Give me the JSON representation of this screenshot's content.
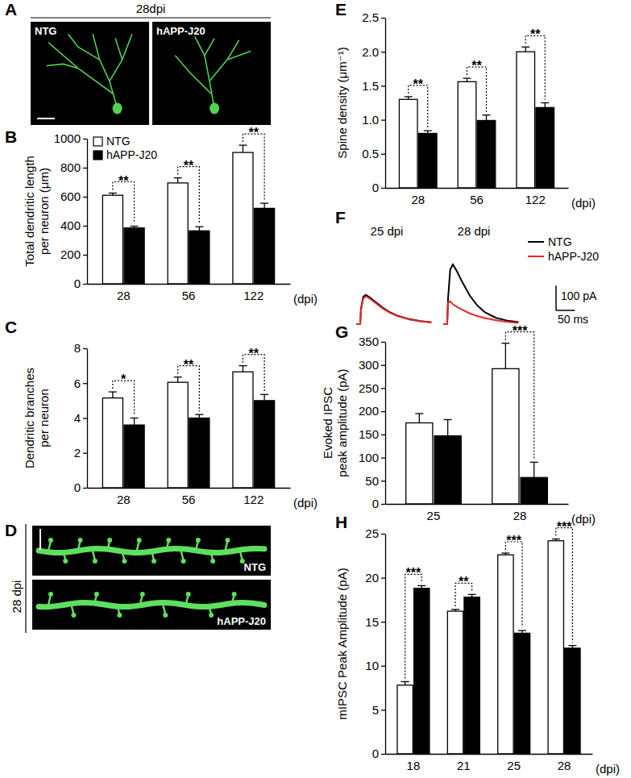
{
  "image_panels": [
    {
      "title": "A",
      "subtitle": "28dpi",
      "images": [
        {
          "label": "NTG"
        },
        {
          "label": "hAPP-J20"
        }
      ]
    },
    {
      "title": "D",
      "subtitle": "28 dpi",
      "images": [
        {
          "label": "NTG"
        },
        {
          "label": "hAPP-J20"
        }
      ]
    }
  ],
  "chart_data": [
    {
      "type": "bar",
      "title": "B",
      "categories": [
        "28",
        "56",
        "122"
      ],
      "xlabel": "(dpi)",
      "ylabel": [
        "Total dendritic length",
        "per neuron (μm)"
      ],
      "ylim": [
        0,
        1000
      ],
      "yticks": [
        0,
        200,
        400,
        600,
        800,
        1000
      ],
      "legend": "upper left",
      "series": [
        {
          "name": "NTG",
          "color": "#ffffff",
          "values": [
            610,
            695,
            905
          ],
          "errors": [
            15,
            35,
            50
          ]
        },
        {
          "name": "hAPP-J20",
          "color": "#000000",
          "values": [
            385,
            365,
            520
          ],
          "errors": [
            12,
            28,
            35
          ]
        }
      ],
      "significance": [
        "**",
        "**",
        "**"
      ]
    },
    {
      "type": "bar",
      "title": "C",
      "categories": [
        "28",
        "56",
        "122"
      ],
      "xlabel": "(dpi)",
      "ylabel": [
        "Dendritic branches",
        "per neuron"
      ],
      "ylim": [
        0,
        8
      ],
      "yticks": [
        0,
        2,
        4,
        6,
        8
      ],
      "series": [
        {
          "color": "#ffffff",
          "values": [
            5.15,
            6.05,
            6.65
          ],
          "errors": [
            0.35,
            0.3,
            0.35
          ]
        },
        {
          "color": "#000000",
          "values": [
            3.6,
            4.0,
            5.0
          ],
          "errors": [
            0.4,
            0.2,
            0.35
          ]
        }
      ],
      "significance": [
        "*",
        "**",
        "**"
      ]
    },
    {
      "type": "bar",
      "title": "E",
      "categories": [
        "28",
        "56",
        "122"
      ],
      "xlabel": "(dpi)",
      "ylabel": [
        "Spine density (μm⁻¹)"
      ],
      "ylim": [
        0,
        2.5
      ],
      "yticks": [
        0,
        0.5,
        {
          "value": 1,
          "label": "1.0"
        },
        1.5,
        {
          "value": 2,
          "label": "2.0"
        },
        2.5
      ],
      "series": [
        {
          "color": "#ffffff",
          "values": [
            1.3,
            1.56,
            2.0
          ],
          "errors": [
            0.04,
            0.05,
            0.07
          ]
        },
        {
          "color": "#000000",
          "values": [
            0.8,
            0.99,
            1.18
          ],
          "errors": [
            0.04,
            0.08,
            0.07
          ]
        }
      ],
      "significance": [
        "**",
        "**",
        "**"
      ]
    },
    {
      "type": "bar",
      "title": "G",
      "categories": [
        "25",
        "28"
      ],
      "xlabel": "(dpi)",
      "ylabel": [
        "Evoked IPSC",
        "peak amplitude (pA)"
      ],
      "ylim": [
        0,
        350
      ],
      "yticks": [
        0,
        50,
        100,
        150,
        200,
        250,
        300,
        350
      ],
      "series": [
        {
          "color": "#ffffff",
          "values": [
            175,
            292
          ],
          "errors": [
            20,
            55
          ]
        },
        {
          "color": "#000000",
          "values": [
            147,
            57
          ],
          "errors": [
            35,
            33
          ]
        }
      ],
      "significance": [
        null,
        "***"
      ]
    },
    {
      "type": "bar",
      "title": "H",
      "categories": [
        "18",
        "21",
        "25",
        "28"
      ],
      "xlabel": "(dpi)",
      "ylabel": [
        "mIPSC Peak Amplitude (pA)"
      ],
      "ylim": [
        0,
        25
      ],
      "yticks": [
        0,
        5,
        10,
        15,
        20,
        25
      ],
      "series": [
        {
          "color": "#ffffff",
          "values": [
            7.8,
            16.2,
            22.6,
            24.2
          ],
          "errors": [
            0.4,
            0.2,
            0.2,
            0.2
          ]
        },
        {
          "color": "#000000",
          "values": [
            18.8,
            17.8,
            13.7,
            12.0
          ],
          "errors": [
            0.3,
            0.3,
            0.3,
            0.3
          ]
        }
      ],
      "significance": [
        "***",
        "**",
        "***",
        "***"
      ]
    },
    {
      "type": "line",
      "title": "F",
      "tick_labels": false,
      "legend": "upper right",
      "xlim": [
        -15,
        200
      ],
      "ylim": [
        -10,
        260
      ],
      "x": [
        -10,
        0,
        2,
        8,
        15,
        25,
        40,
        60,
        80,
        100,
        130,
        160,
        190
      ],
      "panels": [
        {
          "subtitle": "25 dpi",
          "series": [
            {
              "name": "NTG",
              "color": "#000000",
              "values": [
                0,
                0,
                60,
                110,
                118,
                108,
                90,
                66,
                47,
                33,
                20,
                12,
                7
              ]
            },
            {
              "name": "hAPP-J20",
              "color": "#e8262a",
              "values": [
                0,
                0,
                55,
                102,
                112,
                103,
                86,
                63,
                45,
                32,
                19,
                11,
                6
              ]
            }
          ]
        },
        {
          "subtitle": "28 dpi",
          "series": [
            {
              "color": "#000000",
              "values": [
                0,
                0,
                100,
                220,
                240,
                215,
                170,
                115,
                75,
                48,
                25,
                14,
                8
              ]
            },
            {
              "color": "#e8262a",
              "values": [
                0,
                0,
                85,
                92,
                80,
                70,
                58,
                43,
                32,
                24,
                15,
                9,
                5
              ]
            }
          ]
        }
      ],
      "scale_bar": {
        "x": 50,
        "x_label": "50 ms",
        "y": 100,
        "y_label": "100 pA"
      }
    }
  ]
}
